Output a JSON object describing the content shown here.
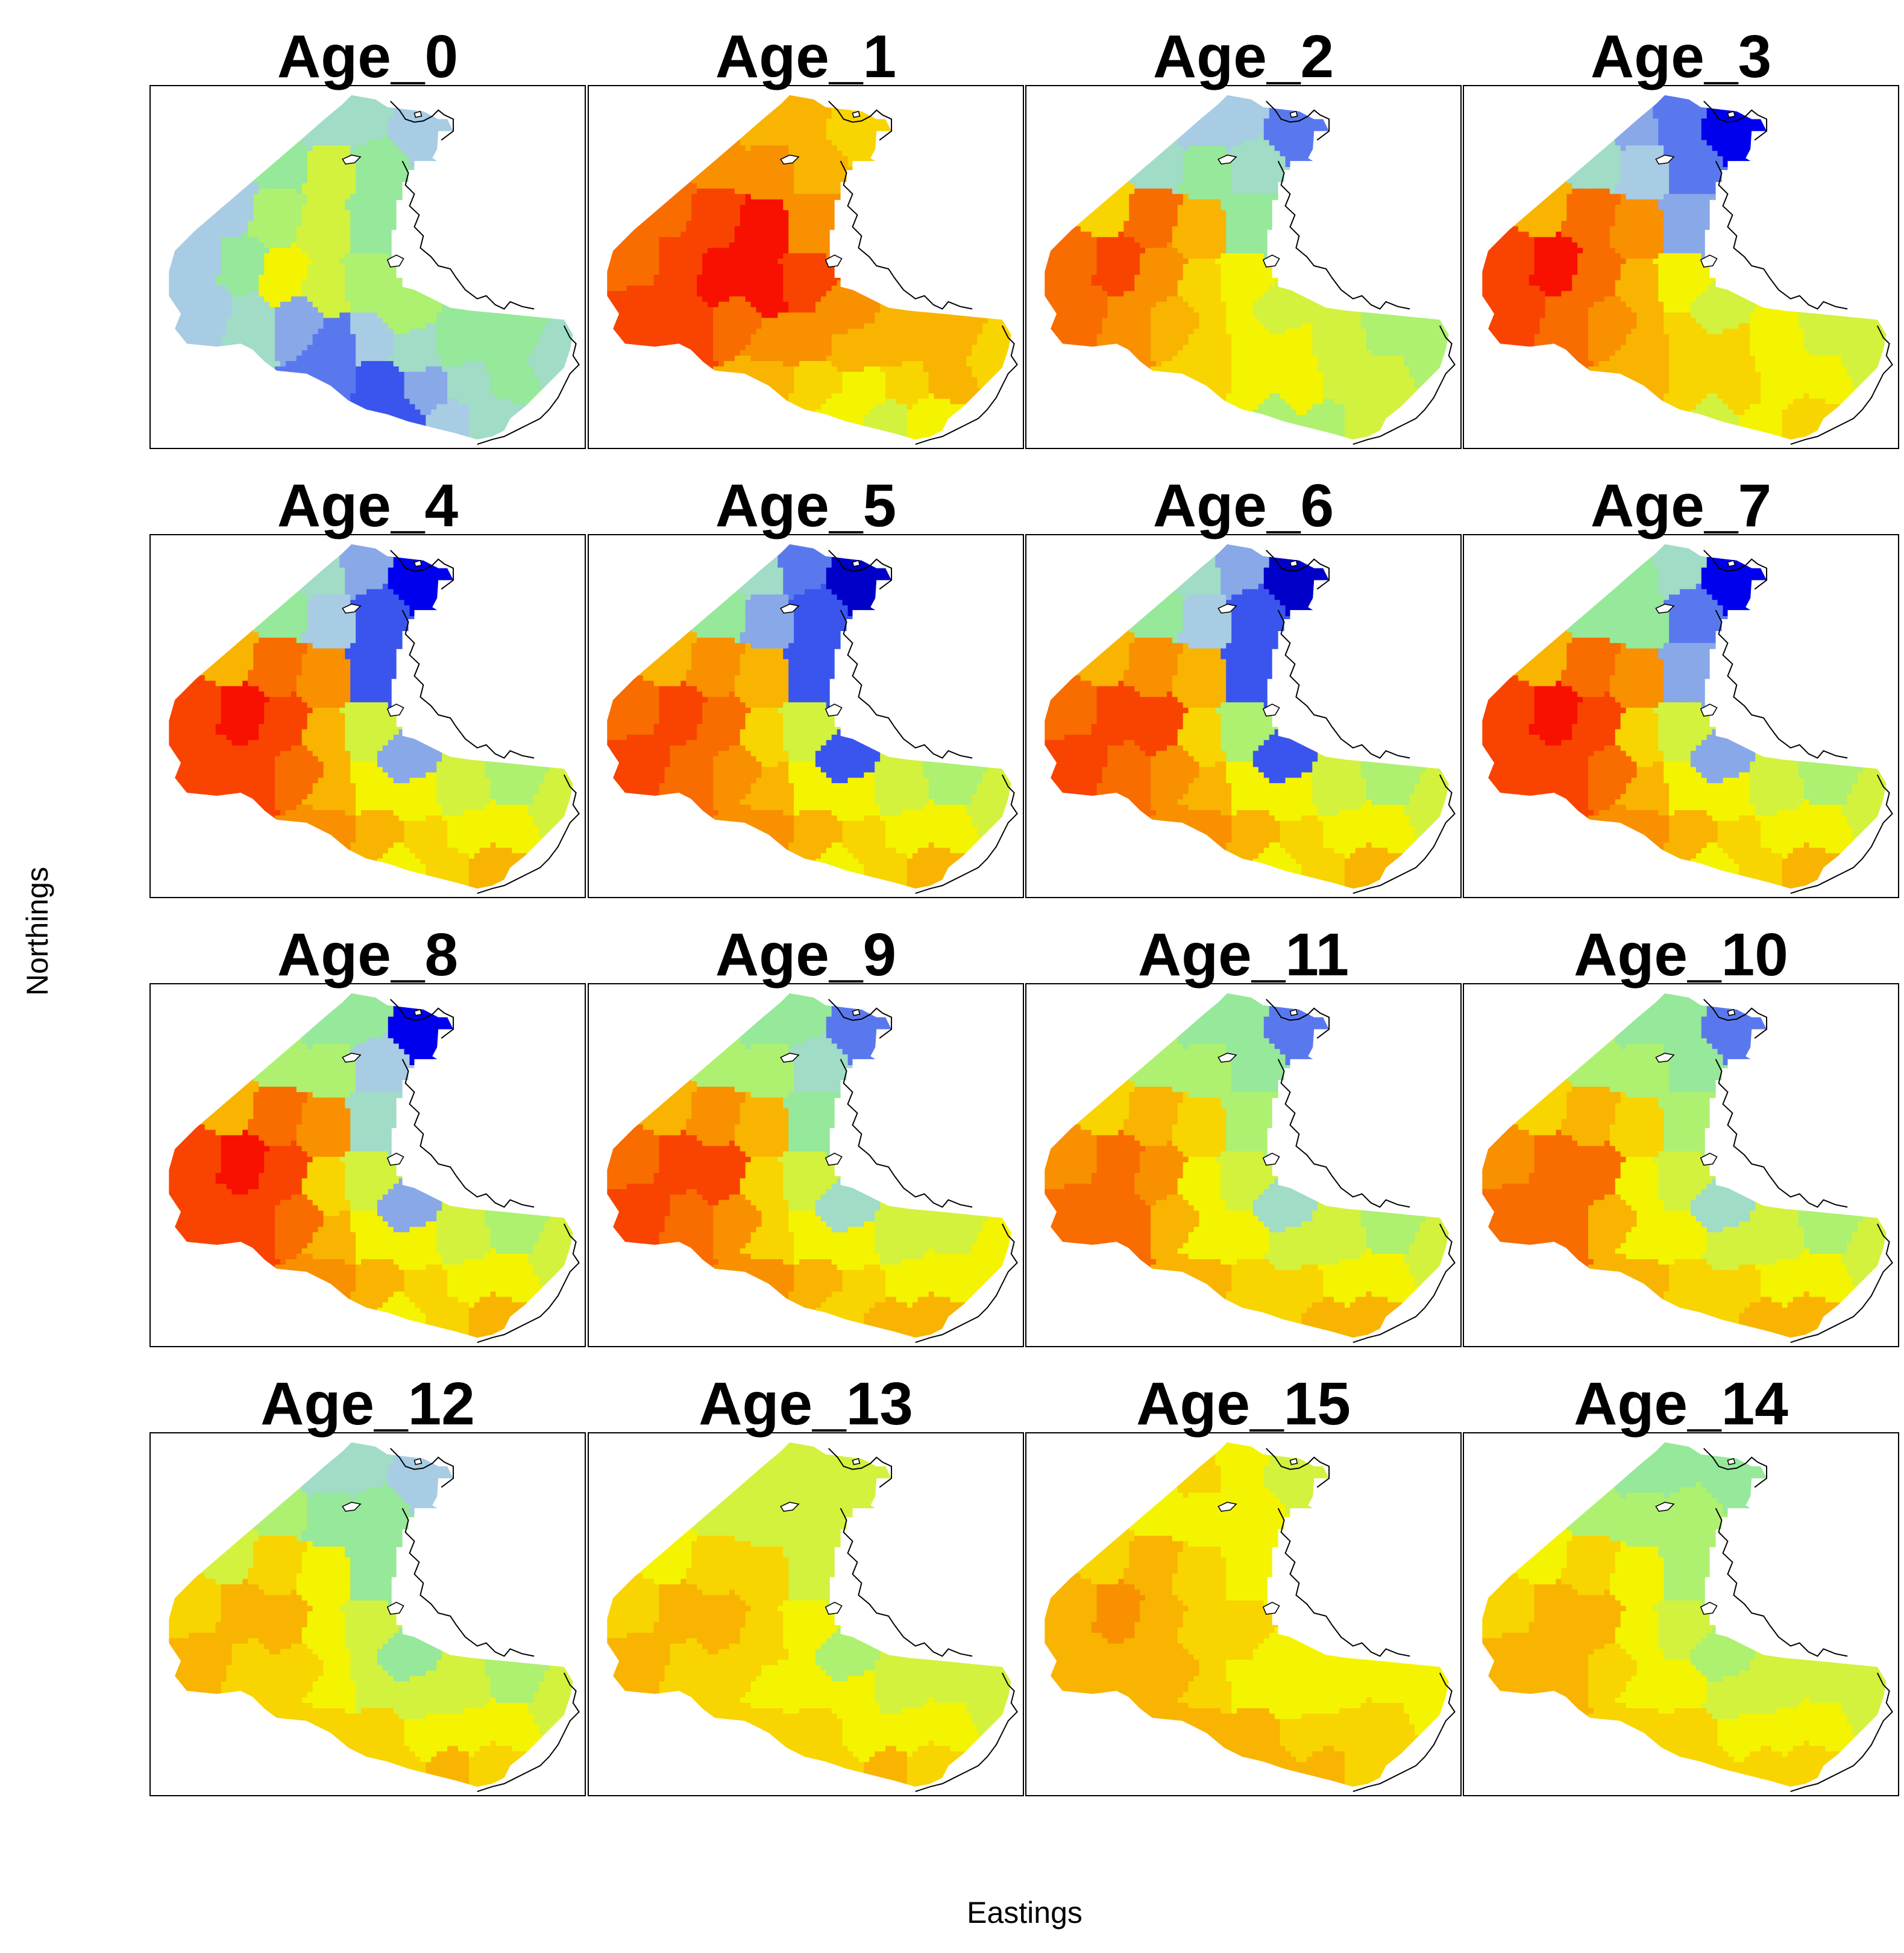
{
  "figure": {
    "xlabel": "Eastings",
    "ylabel": "Northings"
  },
  "palette": [
    "#0000c8",
    "#0000ee",
    "#3a55ee",
    "#5a78ee",
    "#88a8e8",
    "#a8cce4",
    "#a0dcc6",
    "#96e89a",
    "#aef070",
    "#d2f23e",
    "#f4f400",
    "#f8d400",
    "#f8b400",
    "#f89000",
    "#f86c00",
    "#f84400",
    "#f81000"
  ],
  "map_data": {
    "type": "choropleth-panels",
    "value_scale": "0 = blue (low) to 16 = red (high)",
    "panels": [
      {
        "title": "Age_0"
      },
      {
        "title": "Age_1"
      },
      {
        "title": "Age_2"
      },
      {
        "title": "Age_3"
      },
      {
        "title": "Age_4"
      },
      {
        "title": "Age_5"
      },
      {
        "title": "Age_6"
      },
      {
        "title": "Age_7"
      },
      {
        "title": "Age_8"
      },
      {
        "title": "Age_9"
      },
      {
        "title": "Age_11"
      },
      {
        "title": "Age_10"
      },
      {
        "title": "Age_12"
      },
      {
        "title": "Age_13"
      },
      {
        "title": "Age_15"
      },
      {
        "title": "Age_14"
      }
    ]
  }
}
